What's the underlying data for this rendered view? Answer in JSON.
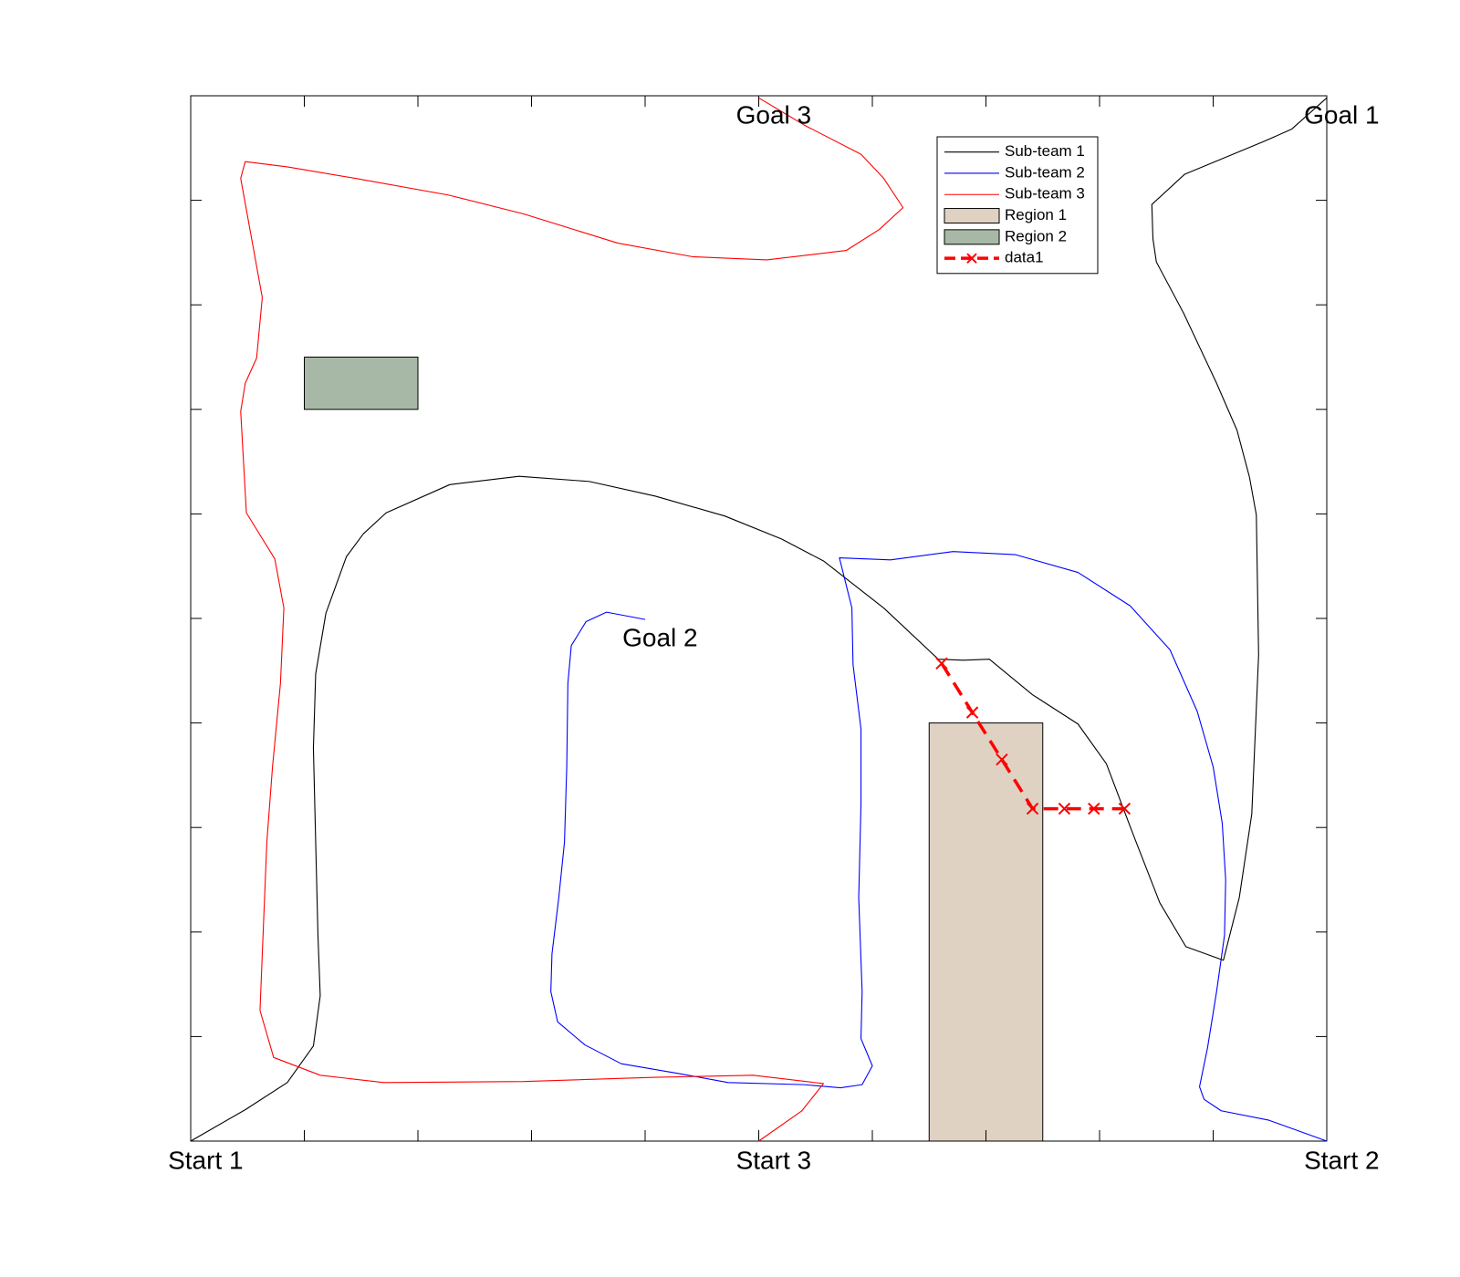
{
  "chart_data": {
    "type": "line",
    "xlim": [
      0,
      10
    ],
    "ylim": [
      0,
      10
    ],
    "xticks": [
      0,
      1,
      2,
      3,
      4,
      5,
      6,
      7,
      8,
      9,
      10
    ],
    "yticks": [
      0,
      1,
      2,
      3,
      4,
      5,
      6,
      7,
      8,
      9,
      10
    ],
    "legend": "northeast",
    "series": [
      {
        "name": "Sub-team 1",
        "color": "#000000",
        "linestyle": "-",
        "x": [
          0,
          0.48,
          0.85,
          1.08,
          1.14,
          1.12,
          1.1,
          1.08,
          1.1,
          1.19,
          1.37,
          1.52,
          1.72,
          2.28,
          2.89,
          3.51,
          4.09,
          4.7,
          5.2,
          5.57,
          6.1,
          6.58,
          6.8,
          7.03,
          7.41,
          7.81,
          8.06,
          8.29,
          8.53,
          8.76,
          9.09,
          9.23,
          9.34,
          9.4,
          9.38,
          9.32,
          9.21,
          9.03,
          8.74,
          8.5,
          8.47,
          8.46,
          8.75,
          9.44,
          9.69,
          10
        ],
        "values": [
          0,
          0.3,
          0.56,
          0.91,
          1.39,
          1.97,
          2.86,
          3.76,
          4.47,
          5.05,
          5.59,
          5.81,
          6.01,
          6.28,
          6.36,
          6.31,
          6.17,
          5.98,
          5.76,
          5.55,
          5.1,
          4.61,
          4.6,
          4.61,
          4.27,
          3.99,
          3.61,
          2.95,
          2.28,
          1.86,
          1.73,
          2.33,
          3.13,
          4.65,
          5.99,
          6.35,
          6.8,
          7.25,
          7.92,
          8.41,
          8.63,
          8.96,
          9.25,
          9.56,
          9.68,
          9.98
        ]
      },
      {
        "name": "Sub-team 2",
        "color": "#0000ff",
        "linestyle": "-",
        "x": [
          10,
          9.49,
          9.07,
          8.92,
          8.88,
          8.95,
          9.03,
          9.1,
          9.11,
          9.08,
          9.0,
          8.86,
          8.62,
          8.27,
          7.81,
          7.26,
          6.71,
          6.16,
          5.71,
          5.82,
          5.83,
          5.9,
          5.9,
          5.88,
          5.91,
          5.9,
          6.0,
          5.91,
          5.72,
          5.4,
          4.73,
          4.33,
          3.79,
          3.47,
          3.23,
          3.17,
          3.18,
          3.24,
          3.29,
          3.31,
          3.32,
          3.35,
          3.48,
          3.66,
          4.0
        ],
        "values": [
          0,
          0.2,
          0.29,
          0.4,
          0.52,
          0.89,
          1.43,
          1.97,
          2.5,
          3.04,
          3.58,
          4.11,
          4.7,
          5.12,
          5.44,
          5.61,
          5.64,
          5.56,
          5.58,
          5.1,
          4.56,
          3.94,
          3.22,
          2.33,
          1.43,
          0.98,
          0.72,
          0.54,
          0.51,
          0.54,
          0.56,
          0.64,
          0.74,
          0.92,
          1.14,
          1.43,
          1.79,
          2.33,
          2.86,
          3.58,
          4.38,
          4.74,
          4.97,
          5.06,
          4.99
        ]
      },
      {
        "name": "Sub-team 3",
        "color": "#ff0000",
        "linestyle": "-",
        "x": [
          5.0,
          5.38,
          5.57,
          4.95,
          4.09,
          2.93,
          1.7,
          1.14,
          0.73,
          0.61,
          0.63,
          0.67,
          0.72,
          0.79,
          0.82,
          0.74,
          0.49,
          0.44,
          0.48,
          0.58,
          0.63,
          0.44,
          0.48,
          0.85,
          1.45,
          2.27,
          2.93,
          3.76,
          4.42,
          5.07,
          5.77,
          6.06,
          6.27,
          6.1,
          5.9,
          5.4,
          5.0
        ],
        "values": [
          0,
          0.29,
          0.55,
          0.63,
          0.61,
          0.57,
          0.56,
          0.63,
          0.8,
          1.25,
          1.79,
          2.86,
          3.58,
          4.38,
          5.1,
          5.57,
          6.01,
          6.98,
          7.25,
          7.49,
          8.07,
          9.21,
          9.37,
          9.32,
          9.21,
          9.05,
          8.87,
          8.59,
          8.46,
          8.43,
          8.52,
          8.72,
          8.93,
          9.21,
          9.44,
          9.72,
          9.98
        ]
      },
      {
        "name": "data1",
        "color": "#ff0000",
        "linestyle": "--",
        "marker": "x",
        "x": [
          6.61,
          6.88,
          7.14,
          7.41,
          7.69,
          7.95,
          8.22
        ],
        "values": [
          4.57,
          4.1,
          3.65,
          3.18,
          3.18,
          3.18,
          3.18
        ]
      }
    ],
    "regions": [
      {
        "name": "Region 1",
        "color": "#dfd2c3",
        "x": [
          6.5,
          7.5
        ],
        "y": [
          0,
          4.0
        ]
      },
      {
        "name": "Region 2",
        "color": "#a8b8a6",
        "x": [
          1.0,
          2.0
        ],
        "y": [
          7.0,
          7.5
        ]
      }
    ],
    "annotations": [
      {
        "text": "Start 1",
        "x": -0.2,
        "y": -0.2
      },
      {
        "text": "Start 3",
        "x": 4.8,
        "y": -0.2
      },
      {
        "text": "Start 2",
        "x": 9.8,
        "y": -0.2
      },
      {
        "text": "Goal 1",
        "x": 9.8,
        "y": 9.8
      },
      {
        "text": "Goal 2",
        "x": 3.8,
        "y": 4.8
      },
      {
        "text": "Goal 3",
        "x": 4.8,
        "y": 9.8
      }
    ]
  }
}
